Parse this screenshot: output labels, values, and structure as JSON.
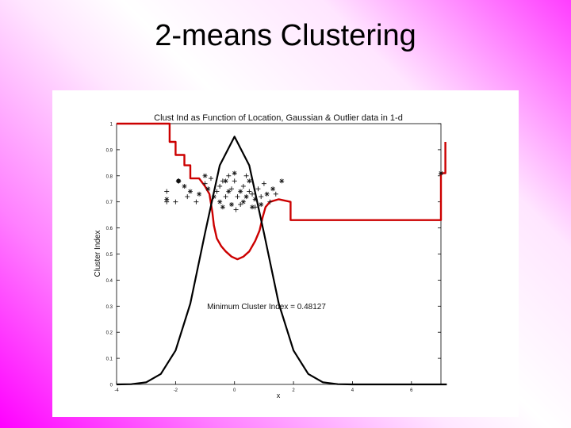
{
  "slide": {
    "title": "2-means Clustering"
  },
  "chart_data": {
    "type": "line",
    "title": "Clust Ind as Function of Location, Gaussian & Outlier data in 1-d",
    "xlabel": "x",
    "ylabel": "Cluster Index",
    "xlim": [
      -4,
      7
    ],
    "ylim": [
      0,
      1
    ],
    "x_ticks": [
      "-4",
      "-2",
      "0",
      "2",
      "4",
      "6"
    ],
    "y_ticks": [
      "0",
      "0.1",
      "0.2",
      "0.3",
      "0.4",
      "0.5",
      "0.6",
      "0.7",
      "0.8",
      "0.9",
      "1"
    ],
    "annotation": "Minimum Cluster Index = 0.48127",
    "grid": false,
    "series": [
      {
        "color": "#cc0000",
        "points": [
          [
            -4,
            1
          ],
          [
            -2.2,
            1
          ],
          [
            -2.2,
            0.93
          ],
          [
            -2.0,
            0.93
          ],
          [
            -2.0,
            0.88
          ],
          [
            -1.7,
            0.88
          ],
          [
            -1.7,
            0.84
          ],
          [
            -1.5,
            0.84
          ],
          [
            -1.5,
            0.79
          ],
          [
            -1.2,
            0.79
          ],
          [
            -1.0,
            0.76
          ],
          [
            -0.85,
            0.73
          ],
          [
            -0.75,
            0.66
          ],
          [
            -0.7,
            0.61
          ],
          [
            -0.6,
            0.56
          ],
          [
            -0.45,
            0.53
          ],
          [
            -0.3,
            0.51
          ],
          [
            -0.1,
            0.49
          ],
          [
            0.1,
            0.48
          ],
          [
            0.3,
            0.49
          ],
          [
            0.5,
            0.51
          ],
          [
            0.7,
            0.55
          ],
          [
            0.85,
            0.59
          ],
          [
            0.95,
            0.64
          ],
          [
            1.05,
            0.68
          ],
          [
            1.2,
            0.7
          ],
          [
            1.5,
            0.71
          ],
          [
            1.9,
            0.7
          ],
          [
            1.9,
            0.63
          ],
          [
            7.0,
            0.63
          ],
          [
            7.0,
            0.81
          ],
          [
            7.15,
            0.81
          ],
          [
            7.15,
            0.93
          ]
        ]
      },
      {
        "color": "#000000",
        "points": [
          [
            -4,
            0
          ],
          [
            -3.5,
            0.001
          ],
          [
            -3,
            0.008
          ],
          [
            -2.5,
            0.04
          ],
          [
            -2,
            0.13
          ],
          [
            -1.5,
            0.31
          ],
          [
            -1,
            0.58
          ],
          [
            -0.5,
            0.84
          ],
          [
            0,
            0.95
          ],
          [
            0.5,
            0.84
          ],
          [
            1,
            0.58
          ],
          [
            1.5,
            0.31
          ],
          [
            2,
            0.13
          ],
          [
            2.5,
            0.04
          ],
          [
            3,
            0.008
          ],
          [
            3.5,
            0.001
          ],
          [
            4,
            0
          ],
          [
            7.2,
            0
          ]
        ]
      }
    ],
    "data_markers": {
      "plus": [
        [
          -2.3,
          0.74
        ],
        [
          -2.3,
          0.7
        ],
        [
          -2.0,
          0.7
        ],
        [
          -1.6,
          0.72
        ],
        [
          -1.3,
          0.7
        ],
        [
          -1.0,
          0.77
        ],
        [
          -0.8,
          0.79
        ],
        [
          -0.6,
          0.74
        ],
        [
          -0.5,
          0.76
        ],
        [
          -0.4,
          0.78
        ],
        [
          -0.3,
          0.72
        ],
        [
          -0.2,
          0.8
        ],
        [
          -0.1,
          0.75
        ],
        [
          0.0,
          0.78
        ],
        [
          0.1,
          0.72
        ],
        [
          0.2,
          0.69
        ],
        [
          0.3,
          0.76
        ],
        [
          0.4,
          0.8
        ],
        [
          0.5,
          0.74
        ],
        [
          0.6,
          0.73
        ],
        [
          0.7,
          0.68
        ],
        [
          0.8,
          0.75
        ],
        [
          0.9,
          0.72
        ],
        [
          1.0,
          0.77
        ],
        [
          1.2,
          0.7
        ],
        [
          1.4,
          0.73
        ],
        [
          0.05,
          0.67
        ]
      ],
      "star": [
        [
          -2.3,
          0.71
        ],
        [
          -1.9,
          0.78
        ],
        [
          -1.7,
          0.76
        ],
        [
          -1.5,
          0.74
        ],
        [
          -1.2,
          0.73
        ],
        [
          -1.0,
          0.8
        ],
        [
          -0.9,
          0.75
        ],
        [
          -0.7,
          0.72
        ],
        [
          -0.5,
          0.7
        ],
        [
          -0.3,
          0.78
        ],
        [
          -0.2,
          0.74
        ],
        [
          -0.1,
          0.69
        ],
        [
          0.0,
          0.81
        ],
        [
          0.2,
          0.74
        ],
        [
          0.3,
          0.7
        ],
        [
          0.5,
          0.78
        ],
        [
          0.6,
          0.68
        ],
        [
          0.7,
          0.71
        ],
        [
          0.9,
          0.69
        ],
        [
          1.1,
          0.73
        ],
        [
          1.3,
          0.75
        ],
        [
          1.6,
          0.78
        ],
        [
          -0.4,
          0.68
        ],
        [
          0.4,
          0.72
        ]
      ],
      "outliers": [
        [
          7.0,
          0.81
        ]
      ],
      "diamond": [
        [
          -1.9,
          0.78
        ]
      ]
    }
  }
}
